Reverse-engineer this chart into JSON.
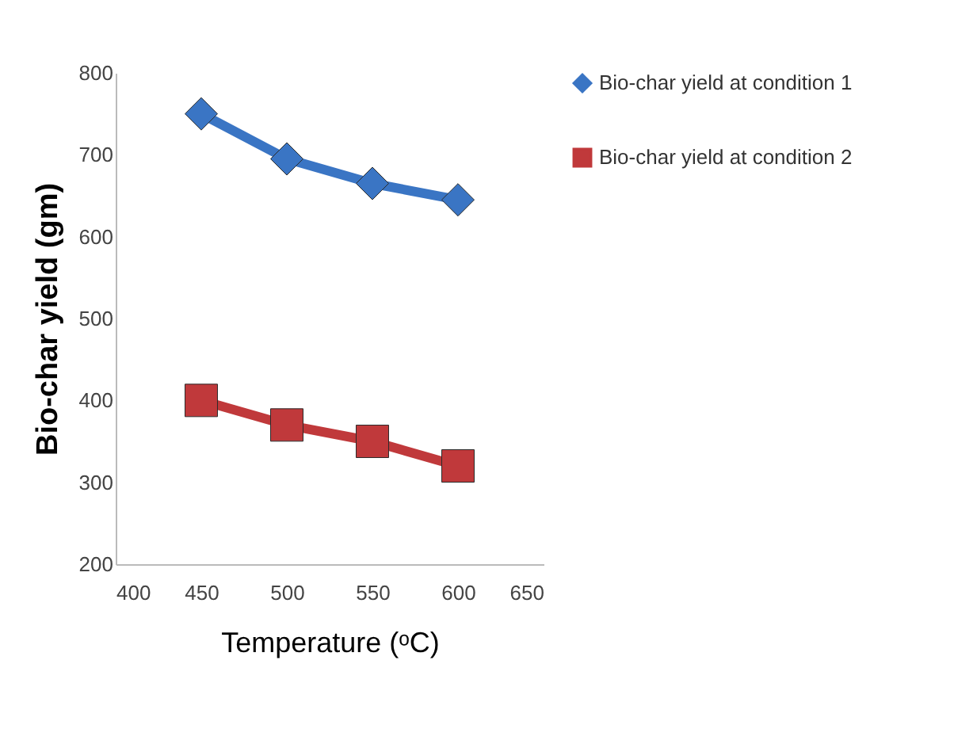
{
  "chart_data": {
    "type": "line",
    "xlabel": "Temperature (ᵒC)",
    "ylabel": "Bio-char yield (gm)",
    "x": [
      450,
      500,
      550,
      600
    ],
    "series": [
      {
        "name": "Bio-char yield at condition 1",
        "color": "#3a75c4",
        "values": [
          750,
          695,
          665,
          645
        ],
        "marker": "diamond"
      },
      {
        "name": "Bio-char yield at condition 2",
        "color": "#c0393b",
        "values": [
          400,
          370,
          350,
          320
        ],
        "marker": "square"
      }
    ],
    "xlim": [
      400,
      650
    ],
    "xticks": [
      400,
      450,
      500,
      550,
      600,
      650
    ],
    "ylim": [
      200,
      800
    ],
    "yticks": [
      200,
      300,
      400,
      500,
      600,
      700,
      800
    ],
    "grid": false,
    "legend": "right",
    "line_style": "solid"
  }
}
